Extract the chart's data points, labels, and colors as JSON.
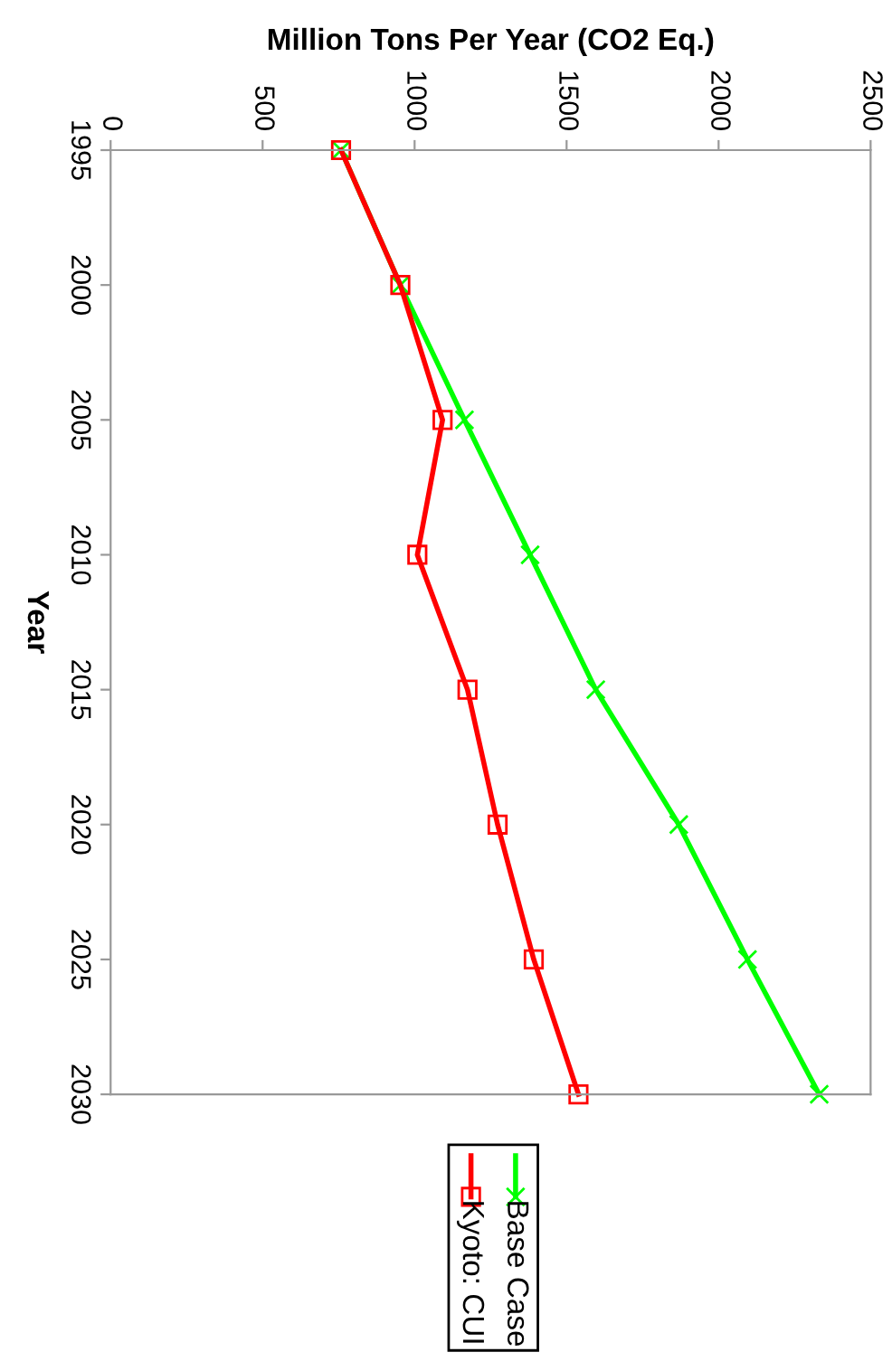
{
  "chart_data": {
    "type": "line",
    "xlabel": "Million Tons Per Year (CO2 Eq.)",
    "ylabel": "Year",
    "xlim": [
      0,
      2500
    ],
    "xticks": [
      0,
      500,
      1000,
      1500,
      2000,
      2500
    ],
    "ylim": [
      2030,
      1995
    ],
    "yticks": [
      1995,
      2000,
      2005,
      2010,
      2015,
      2020,
      2025,
      2030
    ],
    "series": [
      {
        "name": "Base Case",
        "color": "#00ff00",
        "marker": "cross",
        "x": [
          758,
          953,
          1164,
          1380,
          1596,
          1869,
          2095,
          2331
        ],
        "values": [
          1995,
          2000,
          2005,
          2010,
          2015,
          2020,
          2025,
          2030
        ]
      },
      {
        "name": "Kyoto: CUI",
        "color": "#ff0000",
        "marker": "square",
        "x": [
          758,
          953,
          1092,
          1009,
          1174,
          1273,
          1392,
          1539
        ],
        "values": [
          1995,
          2000,
          2005,
          2010,
          2015,
          2020,
          2025,
          2030
        ]
      }
    ],
    "line_style": "solid",
    "grid": false,
    "legend": "bottom"
  }
}
